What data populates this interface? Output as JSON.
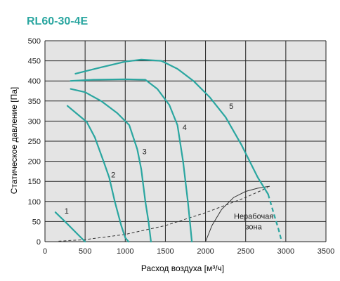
{
  "chart_data": {
    "type": "line",
    "title": "RL60-30-4E",
    "xlabel": "Расход воздуха [м³/ч]",
    "ylabel": "Статическое давление [Па]",
    "xlim": [
      0,
      3500
    ],
    "ylim": [
      0,
      500
    ],
    "x_ticks": [
      0,
      500,
      1000,
      1500,
      2000,
      2500,
      3000,
      3500
    ],
    "y_ticks": [
      0,
      50,
      100,
      150,
      200,
      250,
      300,
      350,
      400,
      450,
      500
    ],
    "grid": true,
    "colors": {
      "title": "#2aa6a0",
      "curve": "#2aa6a0",
      "plot_bg": "#e4e4e4",
      "grid": "#222222",
      "text": "#222222",
      "boundary": "#333333"
    },
    "series": [
      {
        "label": "1",
        "label_at": [
          270,
          70
        ],
        "points": [
          [
            130,
            73
          ],
          [
            250,
            50
          ],
          [
            400,
            20
          ],
          [
            500,
            0
          ]
        ]
      },
      {
        "label": "2",
        "label_at": [
          850,
          160
        ],
        "points": [
          [
            280,
            338
          ],
          [
            400,
            318
          ],
          [
            520,
            298
          ],
          [
            620,
            260
          ],
          [
            730,
            200
          ],
          [
            800,
            160
          ],
          [
            870,
            100
          ],
          [
            950,
            40
          ],
          [
            1000,
            10
          ],
          [
            1040,
            0
          ]
        ]
      },
      {
        "label": "3",
        "label_at": [
          1240,
          218
        ],
        "points": [
          [
            320,
            380
          ],
          [
            500,
            372
          ],
          [
            700,
            350
          ],
          [
            900,
            320
          ],
          [
            1050,
            290
          ],
          [
            1150,
            230
          ],
          [
            1200,
            180
          ],
          [
            1250,
            100
          ],
          [
            1290,
            50
          ],
          [
            1320,
            0
          ]
        ]
      },
      {
        "label": "4",
        "label_at": [
          1740,
          278
        ],
        "points": [
          [
            320,
            400
          ],
          [
            600,
            403
          ],
          [
            1000,
            404
          ],
          [
            1250,
            403
          ],
          [
            1400,
            380
          ],
          [
            1550,
            340
          ],
          [
            1650,
            290
          ],
          [
            1720,
            200
          ],
          [
            1780,
            100
          ],
          [
            1810,
            40
          ],
          [
            1830,
            0
          ]
        ]
      },
      {
        "label": "5",
        "label_at": [
          2320,
          330
        ],
        "points": [
          [
            380,
            418
          ],
          [
            700,
            434
          ],
          [
            1000,
            448
          ],
          [
            1200,
            453
          ],
          [
            1450,
            450
          ],
          [
            1650,
            430
          ],
          [
            1850,
            400
          ],
          [
            2050,
            360
          ],
          [
            2250,
            310
          ],
          [
            2450,
            240
          ],
          [
            2650,
            160
          ],
          [
            2780,
            118
          ]
        ],
        "dashed_tail": [
          [
            2780,
            118
          ],
          [
            2850,
            70
          ],
          [
            2910,
            30
          ],
          [
            2950,
            0
          ]
        ]
      }
    ],
    "system_curve": {
      "style": "dashed",
      "points": [
        [
          170,
          1
        ],
        [
          500,
          5
        ],
        [
          1000,
          18
        ],
        [
          1500,
          40
        ],
        [
          2000,
          72
        ],
        [
          2500,
          110
        ],
        [
          2780,
          135
        ]
      ]
    },
    "nonworking_zone": {
      "label": [
        "Нерабочая",
        "зона"
      ],
      "label_at": [
        2600,
        57
      ],
      "boundary": [
        [
          2000,
          0
        ],
        [
          2080,
          40
        ],
        [
          2200,
          80
        ],
        [
          2350,
          110
        ],
        [
          2500,
          125
        ],
        [
          2650,
          133
        ],
        [
          2800,
          138
        ]
      ]
    }
  }
}
